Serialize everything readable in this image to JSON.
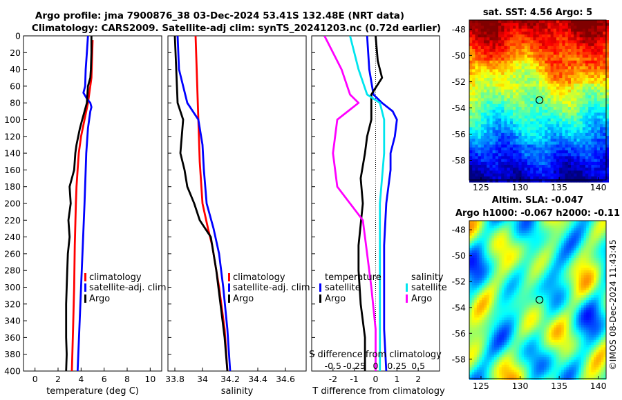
{
  "title_line1": "Argo profile: jma 7900876_38 03-Dec-2024 53.41S 132.48E (NRT data)",
  "title_line2": "Climatology: CARS2009. Satellite-adj clim: synTS_20241203.nc (0.72d earlier)",
  "copyright": "©IMOS 08-Dec-2024 11:43:45",
  "colors": {
    "climatology": "#ff0000",
    "satellite": "#0000ff",
    "argo": "#000000",
    "sat_salinity": "#00e5ee",
    "argo_salinity": "#ff00ff"
  },
  "chart_data": [
    {
      "type": "line",
      "id": "temperature",
      "xlabel": "temperature (deg C)",
      "xlim": [
        -1,
        11
      ],
      "xticks": [
        "0",
        "2",
        "4",
        "6",
        "8",
        "10"
      ],
      "xtick_values": [
        0,
        2,
        4,
        6,
        8,
        10
      ],
      "ylim": [
        0,
        400
      ],
      "yticks": [
        "0",
        "20",
        "40",
        "60",
        "80",
        "100",
        "120",
        "140",
        "160",
        "180",
        "200",
        "220",
        "240",
        "260",
        "280",
        "300",
        "320",
        "340",
        "360",
        "380",
        "400"
      ],
      "legend": [
        "climatology",
        "satellite-adj. clim",
        "Argo"
      ],
      "series": [
        {
          "name": "climatology",
          "color": "#ff0000",
          "depth": [
            5,
            50,
            80,
            100,
            120,
            140,
            160,
            180,
            200,
            250,
            300,
            350,
            400
          ],
          "values": [
            5.0,
            4.9,
            4.6,
            4.3,
            4.0,
            3.8,
            3.7,
            3.6,
            3.55,
            3.45,
            3.4,
            3.3,
            3.2
          ]
        },
        {
          "name": "satellite-adj. clim",
          "color": "#0000ff",
          "depth": [
            0,
            20,
            40,
            60,
            68,
            75,
            80,
            85,
            90,
            100,
            110,
            120,
            140,
            160,
            200,
            250,
            300,
            350,
            400
          ],
          "values": [
            4.6,
            4.5,
            4.4,
            4.35,
            4.2,
            4.5,
            4.8,
            4.9,
            4.8,
            4.7,
            4.6,
            4.55,
            4.45,
            4.4,
            4.3,
            4.15,
            4.0,
            3.85,
            3.7
          ]
        },
        {
          "name": "Argo",
          "color": "#000000",
          "depth": [
            0,
            20,
            40,
            50,
            60,
            80,
            100,
            110,
            120,
            130,
            140,
            160,
            170,
            180,
            200,
            220,
            240,
            260,
            280,
            300,
            320,
            340,
            360,
            380,
            400
          ],
          "values": [
            4.9,
            4.9,
            4.85,
            4.8,
            4.6,
            4.5,
            4.1,
            3.9,
            3.75,
            3.6,
            3.5,
            3.4,
            3.2,
            3.0,
            3.1,
            2.9,
            3.0,
            2.85,
            2.8,
            2.75,
            2.7,
            2.7,
            2.7,
            2.75,
            2.7
          ]
        }
      ]
    },
    {
      "type": "line",
      "id": "salinity",
      "xlabel": "salinity",
      "xlim": [
        33.75,
        34.75
      ],
      "xticks": [
        "33.8",
        "34",
        "34.2",
        "34.4",
        "34.6"
      ],
      "xtick_values": [
        33.8,
        34.0,
        34.2,
        34.4,
        34.6
      ],
      "ylim": [
        0,
        400
      ],
      "legend": [
        "climatology",
        "satellite-adj. clim",
        "Argo"
      ],
      "series": [
        {
          "name": "climatology",
          "color": "#ff0000",
          "depth": [
            0,
            50,
            100,
            150,
            200,
            230,
            250,
            300,
            350,
            400
          ],
          "values": [
            33.95,
            33.96,
            33.97,
            33.98,
            34.0,
            34.04,
            34.07,
            34.12,
            34.16,
            34.18
          ]
        },
        {
          "name": "satellite-adj. clim",
          "color": "#0000ff",
          "depth": [
            0,
            40,
            80,
            100,
            130,
            160,
            200,
            230,
            260,
            300,
            350,
            400
          ],
          "values": [
            33.82,
            33.83,
            33.89,
            33.97,
            34.0,
            34.01,
            34.03,
            34.08,
            34.12,
            34.15,
            34.18,
            34.2
          ]
        },
        {
          "name": "Argo",
          "color": "#000000",
          "depth": [
            0,
            40,
            80,
            100,
            120,
            140,
            160,
            180,
            200,
            220,
            240,
            280,
            320,
            360,
            400
          ],
          "values": [
            33.8,
            33.81,
            33.82,
            33.86,
            33.85,
            33.84,
            33.87,
            33.89,
            33.94,
            33.98,
            34.06,
            34.1,
            34.13,
            34.16,
            34.18
          ]
        }
      ]
    },
    {
      "type": "line",
      "id": "difference",
      "xlabel": "T difference from climatology",
      "x2label": "S difference from climatology",
      "xlim": [
        -3,
        3
      ],
      "xticks": [
        "-2",
        "-1",
        "0",
        "1",
        "2"
      ],
      "xtick_values": [
        -2,
        -1,
        0,
        1,
        2
      ],
      "x2ticks": [
        "-0.5",
        "-0.25",
        "0",
        "0.25",
        "0.5"
      ],
      "x2tick_values": [
        -0.5,
        -0.25,
        0,
        0.25,
        0.5
      ],
      "ylim": [
        0,
        400
      ],
      "legend_temperature_title": "temperature",
      "legend_salinity_title": "salinity",
      "legend_temperature": [
        "satellite",
        "Argo"
      ],
      "legend_salinity": [
        "satellite",
        "Argo"
      ],
      "series": [
        {
          "name": "temperature satellite",
          "color": "#0000ff",
          "depth": [
            0,
            40,
            70,
            80,
            90,
            100,
            120,
            140,
            160,
            200,
            250,
            300,
            350,
            400
          ],
          "values": [
            -0.4,
            -0.3,
            -0.1,
            0.3,
            0.8,
            1.0,
            0.9,
            0.7,
            0.7,
            0.5,
            0.4,
            0.4,
            0.4,
            0.5
          ]
        },
        {
          "name": "temperature Argo",
          "color": "#000000",
          "depth": [
            0,
            30,
            50,
            70,
            100,
            120,
            140,
            170,
            200,
            250,
            280,
            320,
            360,
            400
          ],
          "values": [
            0.0,
            0.1,
            0.3,
            -0.2,
            -0.2,
            -0.4,
            -0.5,
            -0.7,
            -0.6,
            -0.8,
            -0.8,
            -0.7,
            -0.5,
            -0.5
          ]
        },
        {
          "name": "salinity satellite",
          "color": "#00e5ee",
          "depth": [
            0,
            40,
            70,
            80,
            100,
            140,
            200,
            250,
            300,
            350,
            400
          ],
          "values": [
            -0.3,
            -0.2,
            -0.1,
            0.05,
            0.1,
            0.1,
            0.05,
            0.05,
            0.05,
            0.05,
            0.05
          ]
        },
        {
          "name": "salinity Argo",
          "color": "#ff00ff",
          "depth": [
            0,
            40,
            70,
            80,
            100,
            140,
            180,
            220,
            260,
            300,
            350,
            400
          ],
          "values": [
            -0.6,
            -0.4,
            -0.3,
            -0.2,
            -0.45,
            -0.5,
            -0.45,
            -0.15,
            -0.1,
            -0.05,
            0.0,
            0.0
          ]
        }
      ]
    },
    {
      "type": "heatmap",
      "id": "sst_map",
      "title": "sat. SST: 4.56 Argo: 5",
      "xticks": [
        "125",
        "130",
        "135",
        "140"
      ],
      "yticks": [
        "-48",
        "-50",
        "-52",
        "-54",
        "-56",
        "-58"
      ],
      "xlim": [
        123.5,
        141
      ],
      "ylim": [
        -59.5,
        -47.3
      ],
      "marker": {
        "lon": 132.48,
        "lat": -53.41
      }
    },
    {
      "type": "heatmap",
      "id": "sla_map",
      "title": "Altim. SLA: -0.047",
      "subtitle": "Argo h1000: -0.067 h2000: -0.11",
      "xticks": [
        "125",
        "130",
        "135",
        "140"
      ],
      "yticks": [
        "-48",
        "-50",
        "-52",
        "-54",
        "-56",
        "-58"
      ],
      "xlim": [
        123.5,
        141
      ],
      "ylim": [
        -59.5,
        -47.3
      ],
      "marker": {
        "lon": 132.48,
        "lat": -53.41
      }
    }
  ]
}
